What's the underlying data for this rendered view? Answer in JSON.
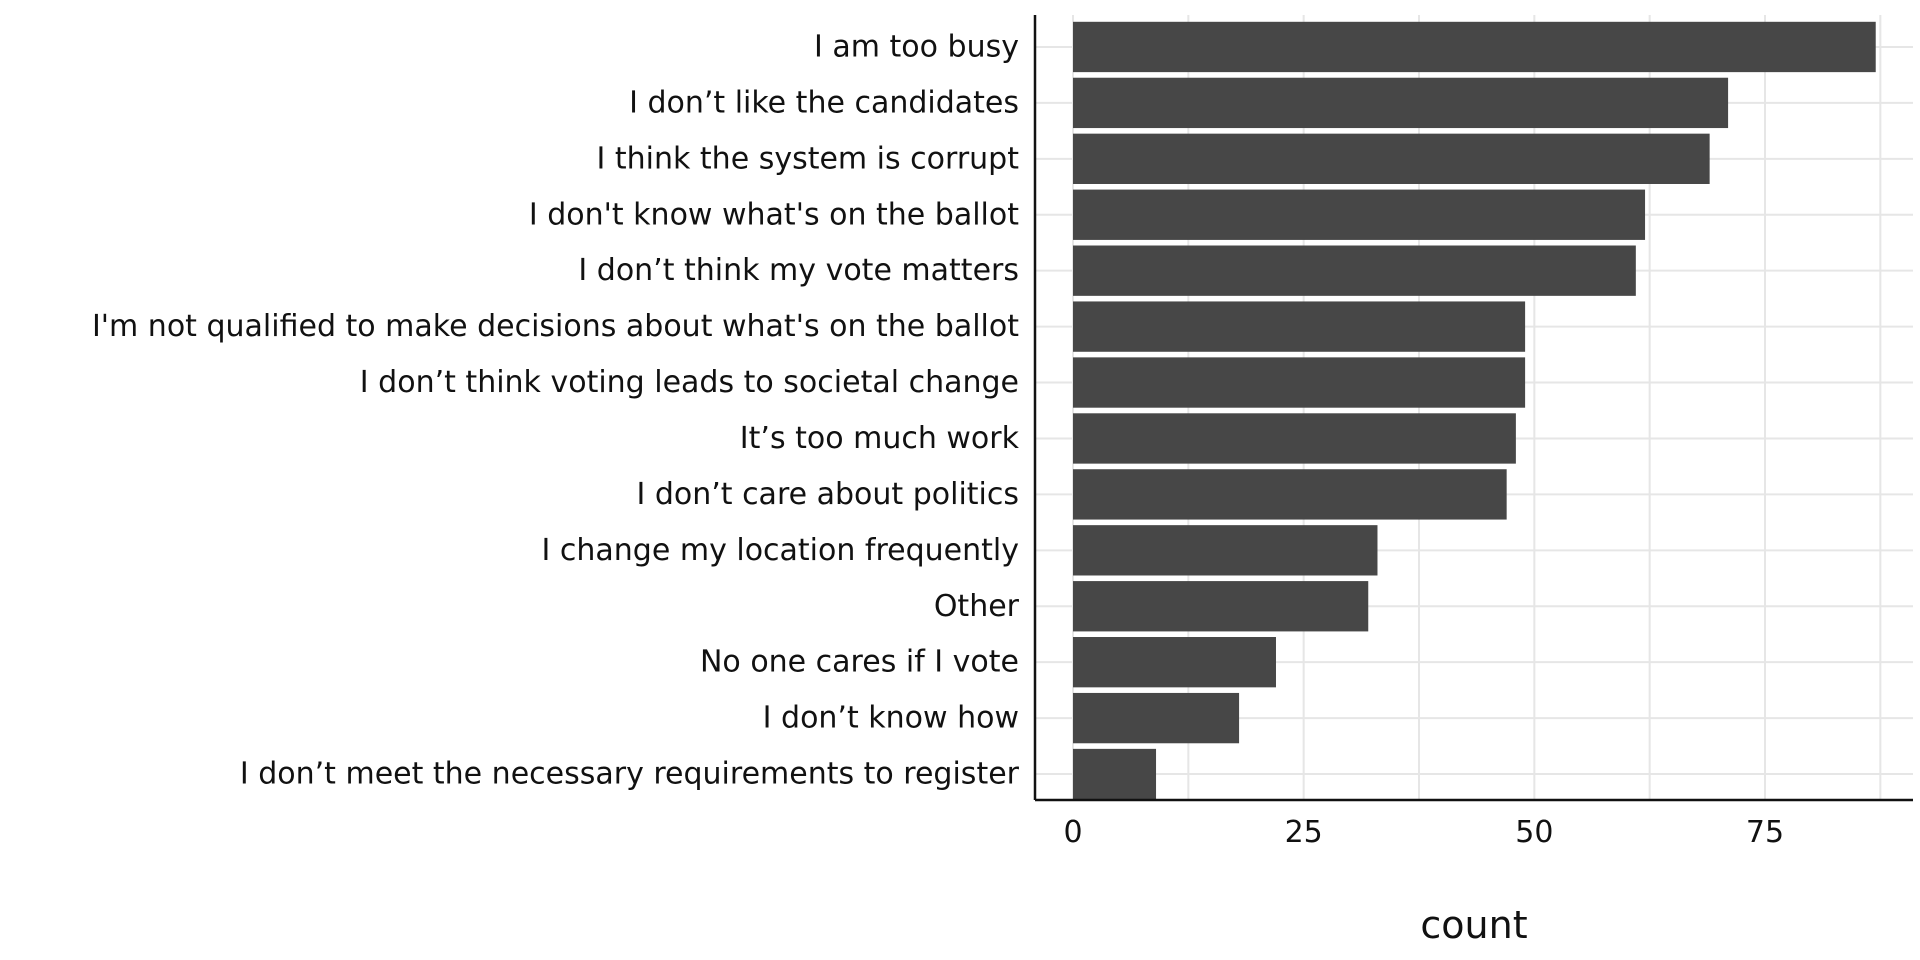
{
  "chart_data": {
    "type": "bar",
    "orientation": "horizontal",
    "title": "",
    "xlabel": "count",
    "ylabel": "",
    "xlim": [
      0,
      90
    ],
    "x_ticks": [
      0,
      25,
      50,
      75
    ],
    "grid": true,
    "categories": [
      "I am too busy",
      "I don’t like the candidates",
      "I think the system is corrupt",
      "I don't know what's on the ballot",
      "I don’t think my vote matters",
      "I'm not qualified to make decisions about what's on the ballot",
      "I don’t think voting leads to societal change",
      "It’s too much work",
      "I don’t care about politics",
      "I change my location frequently",
      "Other",
      "No one cares if I vote",
      "I don’t know how",
      "I don’t meet the necessary requirements to register"
    ],
    "values": [
      87,
      71,
      69,
      62,
      61,
      49,
      49,
      48,
      47,
      33,
      32,
      22,
      18,
      9
    ]
  },
  "colors": {
    "bar": "#474747",
    "grid": "#e6e6e6",
    "axis": "#111111",
    "text": "#111111"
  }
}
